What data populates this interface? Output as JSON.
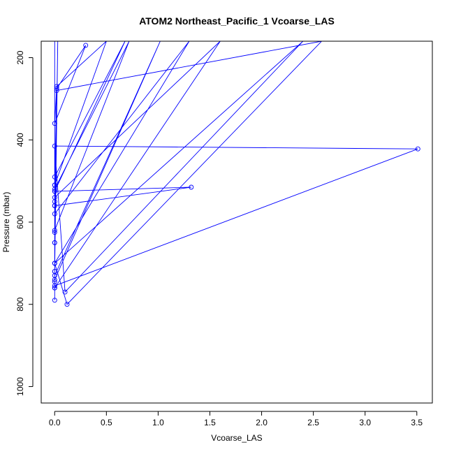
{
  "chart_data": {
    "type": "line",
    "title": "ATOM2 Northeast_Pacific_1 Vcoarse_LAS",
    "xlabel": "Vcoarse_LAS",
    "ylabel": "Pressure (mbar)",
    "xlim": [
      -0.13,
      3.65
    ],
    "ylim": [
      1040,
      160
    ],
    "y_reversed": true,
    "x_ticks": [
      0.0,
      0.5,
      1.0,
      1.5,
      2.0,
      2.5,
      3.0,
      3.5
    ],
    "x_tick_labels": [
      "0.0",
      "0.5",
      "1.0",
      "1.5",
      "2.0",
      "2.5",
      "3.0",
      "3.5"
    ],
    "y_ticks": [
      200,
      400,
      600,
      800,
      1000
    ],
    "y_tick_labels": [
      "200",
      "400",
      "600",
      "800",
      "1000"
    ],
    "grid": false,
    "series_color": "#0000ff",
    "series": [
      {
        "x": [
          0.0,
          0.0,
          0.0,
          0.0,
          0.0,
          0.0,
          0.0,
          0.0,
          0.0,
          0.02,
          0.3,
          0.0,
          0.02,
          0.5,
          0.0,
          0.0,
          0.72,
          0.0,
          0.0,
          0.0,
          0.68,
          0.0,
          0.0,
          1.6,
          0.0,
          0.0,
          1.02,
          0.0,
          0.0,
          1.3,
          0.0,
          0.0,
          1.32,
          0.0,
          0.0,
          0.02,
          2.58,
          0.12,
          0.0,
          2.4,
          0.1,
          0.0,
          3.51,
          0.0,
          0.0,
          0.03,
          0.0,
          0.0
        ],
        "y": [
          160,
          790,
          760,
          745,
          720,
          700,
          650,
          625,
          560,
          275,
          170,
          360,
          270,
          160,
          510,
          620,
          160,
          520,
          550,
          525,
          160,
          490,
          540,
          160,
          760,
          730,
          160,
          740,
          700,
          160,
          580,
          560,
          515,
          525,
          510,
          280,
          160,
          800,
          700,
          160,
          770,
          415,
          422,
          755,
          720,
          160,
          650,
          160
        ]
      }
    ]
  }
}
